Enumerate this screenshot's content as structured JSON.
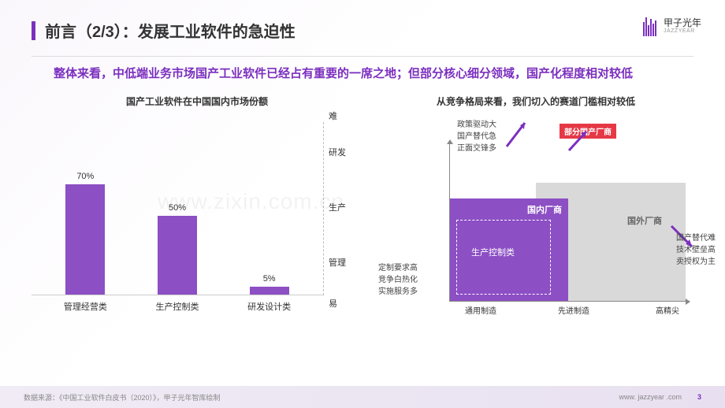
{
  "header": {
    "title": "前言（2/3）：发展工业软件的急迫性",
    "logo_main": "甲子光年",
    "logo_sub": "JAZZYEAR"
  },
  "subtitle": "整体来看，中低端业务市场国产工业软件已经占有重要的一席之地；但部分核心细分领域，国产化程度相对较低",
  "bar_chart": {
    "title": "国产工业软件在中国国内市场份额",
    "type": "bar",
    "categories": [
      "管理经营类",
      "生产控制类",
      "研发设计类"
    ],
    "values": [
      70,
      50,
      5
    ],
    "value_labels": [
      "70%",
      "50%",
      "5%"
    ],
    "bar_color": "#8c4fc4",
    "ymax": 100,
    "yaxis_top_label": "难",
    "yaxis_bottom_label": "易",
    "yaxis_ticks": [
      "研发",
      "生产",
      "管理"
    ]
  },
  "quadrant": {
    "title": "从竞争格局来看，我们切入的赛道门槛相对较低",
    "x_ticks": [
      "通用制造",
      "先进制造",
      "高精尖"
    ],
    "annot_top": [
      "政策驱动大",
      "国产替代急",
      "正面交锋多"
    ],
    "annot_bottom": [
      "定制要求高",
      "竞争白热化",
      "实施服务多"
    ],
    "annot_right": [
      "国产替代难",
      "技术壁垒高",
      "卖授权为主"
    ],
    "red_tag": "部分国产厂商",
    "label_domestic": "国内厂商",
    "label_foreign": "国外厂商",
    "label_prod_control": "生产控制类",
    "colors": {
      "purple": "#8c4fc4",
      "gray": "#d9d9d9",
      "red": "#e63946",
      "arrow": "#7b2fbf"
    }
  },
  "footer": {
    "source": "数据来源：《中国工业软件白皮书（2020）》，甲子光年智库绘制",
    "url": "www. jazzyear .com",
    "page": "3"
  },
  "watermark": "www.zixin.com.cn"
}
